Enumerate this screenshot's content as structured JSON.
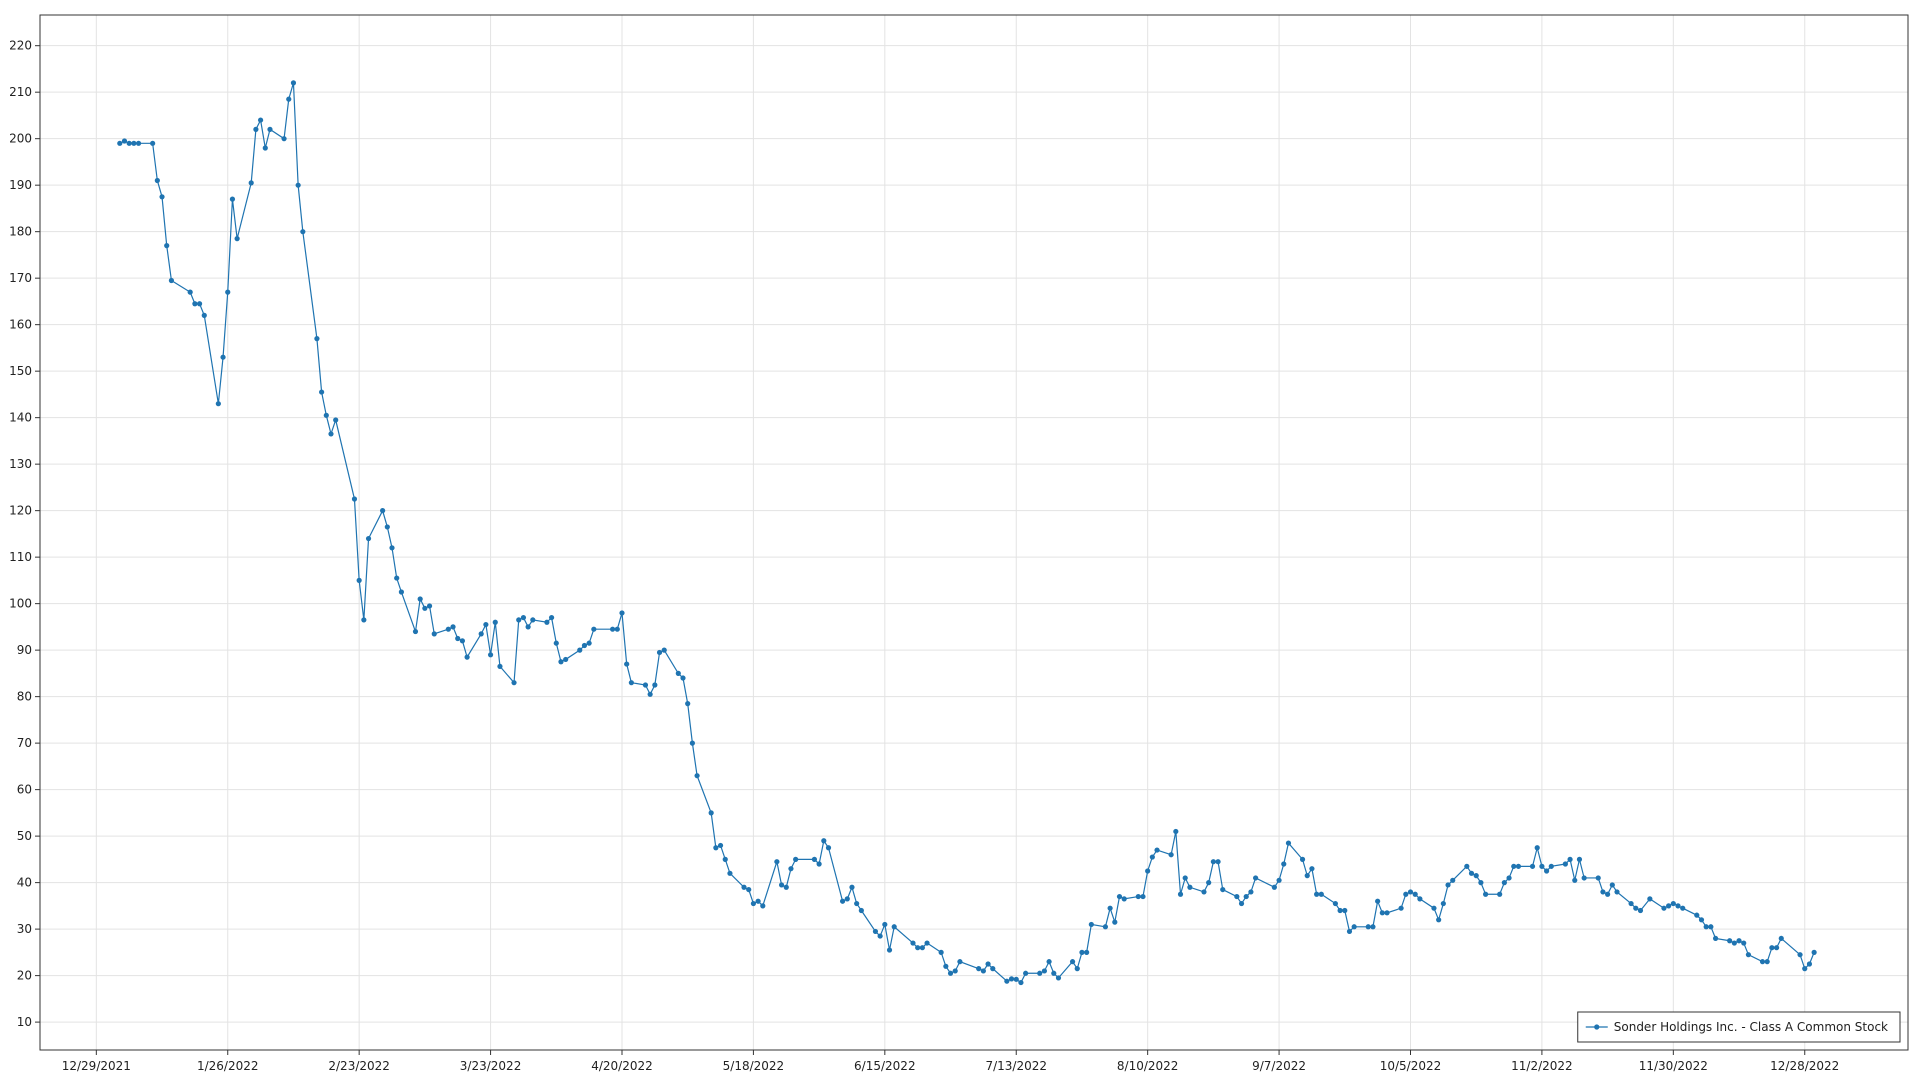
{
  "chart_data": {
    "type": "line",
    "x": [
      "1/3/2022",
      "1/4/2022",
      "1/5/2022",
      "1/6/2022",
      "1/7/2022",
      "1/10/2022",
      "1/11/2022",
      "1/12/2022",
      "1/13/2022",
      "1/14/2022",
      "1/18/2022",
      "1/19/2022",
      "1/20/2022",
      "1/21/2022",
      "1/24/2022",
      "1/25/2022",
      "1/26/2022",
      "1/27/2022",
      "1/28/2022",
      "1/31/2022",
      "2/1/2022",
      "2/2/2022",
      "2/3/2022",
      "2/4/2022",
      "2/7/2022",
      "2/8/2022",
      "2/9/2022",
      "2/10/2022",
      "2/11/2022",
      "2/14/2022",
      "2/15/2022",
      "2/16/2022",
      "2/17/2022",
      "2/18/2022",
      "2/22/2022",
      "2/23/2022",
      "2/24/2022",
      "2/25/2022",
      "2/28/2022",
      "3/1/2022",
      "3/2/2022",
      "3/3/2022",
      "3/4/2022",
      "3/7/2022",
      "3/8/2022",
      "3/9/2022",
      "3/10/2022",
      "3/11/2022",
      "3/14/2022",
      "3/15/2022",
      "3/16/2022",
      "3/17/2022",
      "3/18/2022",
      "3/21/2022",
      "3/22/2022",
      "3/23/2022",
      "3/24/2022",
      "3/25/2022",
      "3/28/2022",
      "3/29/2022",
      "3/30/2022",
      "3/31/2022",
      "4/1/2022",
      "4/4/2022",
      "4/5/2022",
      "4/6/2022",
      "4/7/2022",
      "4/8/2022",
      "4/11/2022",
      "4/12/2022",
      "4/13/2022",
      "4/14/2022",
      "4/18/2022",
      "4/19/2022",
      "4/20/2022",
      "4/21/2022",
      "4/22/2022",
      "4/25/2022",
      "4/26/2022",
      "4/27/2022",
      "4/28/2022",
      "4/29/2022",
      "5/2/2022",
      "5/3/2022",
      "5/4/2022",
      "5/5/2022",
      "5/6/2022",
      "5/9/2022",
      "5/10/2022",
      "5/11/2022",
      "5/12/2022",
      "5/13/2022",
      "5/16/2022",
      "5/17/2022",
      "5/18/2022",
      "5/19/2022",
      "5/20/2022",
      "5/23/2022",
      "5/24/2022",
      "5/25/2022",
      "5/26/2022",
      "5/27/2022",
      "5/31/2022",
      "6/1/2022",
      "6/2/2022",
      "6/3/2022",
      "6/6/2022",
      "6/7/2022",
      "6/8/2022",
      "6/9/2022",
      "6/10/2022",
      "6/13/2022",
      "6/14/2022",
      "6/15/2022",
      "6/16/2022",
      "6/17/2022",
      "6/21/2022",
      "6/22/2022",
      "6/23/2022",
      "6/24/2022",
      "6/27/2022",
      "6/28/2022",
      "6/29/2022",
      "6/30/2022",
      "7/1/2022",
      "7/5/2022",
      "7/6/2022",
      "7/7/2022",
      "7/8/2022",
      "7/11/2022",
      "7/12/2022",
      "7/13/2022",
      "7/14/2022",
      "7/15/2022",
      "7/18/2022",
      "7/19/2022",
      "7/20/2022",
      "7/21/2022",
      "7/22/2022",
      "7/25/2022",
      "7/26/2022",
      "7/27/2022",
      "7/28/2022",
      "7/29/2022",
      "8/1/2022",
      "8/2/2022",
      "8/3/2022",
      "8/4/2022",
      "8/5/2022",
      "8/8/2022",
      "8/9/2022",
      "8/10/2022",
      "8/11/2022",
      "8/12/2022",
      "8/15/2022",
      "8/16/2022",
      "8/17/2022",
      "8/18/2022",
      "8/19/2022",
      "8/22/2022",
      "8/23/2022",
      "8/24/2022",
      "8/25/2022",
      "8/26/2022",
      "8/29/2022",
      "8/30/2022",
      "8/31/2022",
      "9/1/2022",
      "9/2/2022",
      "9/6/2022",
      "9/7/2022",
      "9/8/2022",
      "9/9/2022",
      "9/12/2022",
      "9/13/2022",
      "9/14/2022",
      "9/15/2022",
      "9/16/2022",
      "9/19/2022",
      "9/20/2022",
      "9/21/2022",
      "9/22/2022",
      "9/23/2022",
      "9/26/2022",
      "9/27/2022",
      "9/28/2022",
      "9/29/2022",
      "9/30/2022",
      "10/3/2022",
      "10/4/2022",
      "10/5/2022",
      "10/6/2022",
      "10/7/2022",
      "10/10/2022",
      "10/11/2022",
      "10/12/2022",
      "10/13/2022",
      "10/14/2022",
      "10/17/2022",
      "10/18/2022",
      "10/19/2022",
      "10/20/2022",
      "10/21/2022",
      "10/24/2022",
      "10/25/2022",
      "10/26/2022",
      "10/27/2022",
      "10/28/2022",
      "10/31/2022",
      "11/1/2022",
      "11/2/2022",
      "11/3/2022",
      "11/4/2022",
      "11/7/2022",
      "11/8/2022",
      "11/9/2022",
      "11/10/2022",
      "11/11/2022",
      "11/14/2022",
      "11/15/2022",
      "11/16/2022",
      "11/17/2022",
      "11/18/2022",
      "11/21/2022",
      "11/22/2022",
      "11/23/2022",
      "11/25/2022",
      "11/28/2022",
      "11/29/2022",
      "11/30/2022",
      "12/1/2022",
      "12/2/2022",
      "12/5/2022",
      "12/6/2022",
      "12/7/2022",
      "12/8/2022",
      "12/9/2022",
      "12/12/2022",
      "12/13/2022",
      "12/14/2022",
      "12/15/2022",
      "12/16/2022",
      "12/19/2022",
      "12/20/2022",
      "12/21/2022",
      "12/22/2022",
      "12/23/2022",
      "12/27/2022",
      "12/28/2022",
      "12/29/2022",
      "12/30/2022"
    ],
    "series": [
      {
        "name": "Sonder Holdings Inc. - Class A Common Stock",
        "color": "#1f74b1",
        "values": [
          199,
          199.5,
          199,
          199,
          199,
          199,
          191,
          187.5,
          177,
          169.5,
          167,
          164.5,
          164.5,
          162,
          143,
          153,
          167,
          187,
          178.5,
          190.5,
          202,
          204,
          198,
          202,
          200,
          208.5,
          212,
          190,
          180,
          157,
          145.5,
          140.5,
          136.5,
          139.5,
          122.5,
          105,
          96.5,
          114,
          120,
          116.5,
          112,
          105.5,
          102.5,
          94,
          101,
          99,
          99.5,
          93.5,
          94.5,
          95,
          92.5,
          92,
          88.5,
          93.5,
          95.5,
          89,
          96,
          86.5,
          83,
          96.5,
          97,
          95,
          96.5,
          96,
          97,
          91.5,
          87.5,
          88,
          90,
          91,
          91.5,
          94.5,
          94.5,
          94.5,
          98,
          87,
          83,
          82.5,
          80.5,
          82.5,
          89.5,
          90,
          85,
          84,
          78.5,
          70,
          63,
          55,
          47.5,
          48,
          45,
          42,
          39,
          38.5,
          35.5,
          36,
          35,
          44.5,
          39.5,
          39,
          43,
          45,
          45,
          44,
          49,
          47.5,
          36,
          36.5,
          39,
          35.5,
          34,
          29.5,
          28.5,
          31,
          25.5,
          30.5,
          27,
          26,
          26,
          27,
          25,
          22,
          20.5,
          21,
          23,
          21.5,
          21,
          22.5,
          21.5,
          18.8,
          19.3,
          19.2,
          18.5,
          20.5,
          20.5,
          21,
          23,
          20.5,
          19.5,
          23,
          21.5,
          25,
          25,
          31,
          30.5,
          34.5,
          31.5,
          37,
          36.5,
          37,
          37,
          42.5,
          45.5,
          47,
          46,
          51,
          37.5,
          41,
          39,
          38,
          40,
          44.5,
          44.5,
          38.5,
          37,
          35.5,
          37,
          38,
          41,
          39,
          40.5,
          44,
          48.5,
          45,
          41.5,
          43,
          37.5,
          37.5,
          35.5,
          34,
          34,
          29.5,
          30.5,
          30.5,
          30.5,
          36,
          33.5,
          33.5,
          34.5,
          37.5,
          38,
          37.5,
          36.5,
          34.5,
          32,
          35.5,
          39.5,
          40.5,
          43.5,
          42,
          41.5,
          40,
          37.5,
          37.5,
          40,
          41,
          43.5,
          43.5,
          43.5,
          47.5,
          43.5,
          42.5,
          43.5,
          44,
          45,
          40.5,
          45,
          41,
          41,
          38,
          37.5,
          39.5,
          38,
          35.5,
          34.5,
          34,
          36.5,
          34.5,
          35,
          35.5,
          35,
          34.5,
          33,
          32,
          30.5,
          30.5,
          28,
          27.5,
          27,
          27.5,
          27,
          24.5,
          23,
          23,
          26,
          26,
          28,
          24.5,
          21.5,
          22.5,
          25
        ]
      }
    ],
    "xlim": [
      "12/17/2021",
      "1/19/2023"
    ],
    "xticks": [
      "12/29/2021",
      "1/26/2022",
      "2/23/2022",
      "3/23/2022",
      "4/20/2022",
      "5/18/2022",
      "6/15/2022",
      "7/13/2022",
      "8/10/2022",
      "9/7/2022",
      "10/5/2022",
      "11/2/2022",
      "11/30/2022",
      "12/28/2022"
    ],
    "ylim": [
      4,
      226.6
    ],
    "yticks": [
      10,
      20,
      30,
      40,
      50,
      60,
      70,
      80,
      90,
      100,
      110,
      120,
      130,
      140,
      150,
      160,
      170,
      180,
      190,
      200,
      210,
      220
    ],
    "grid": true,
    "legend": "bottom-right",
    "markers": true
  }
}
